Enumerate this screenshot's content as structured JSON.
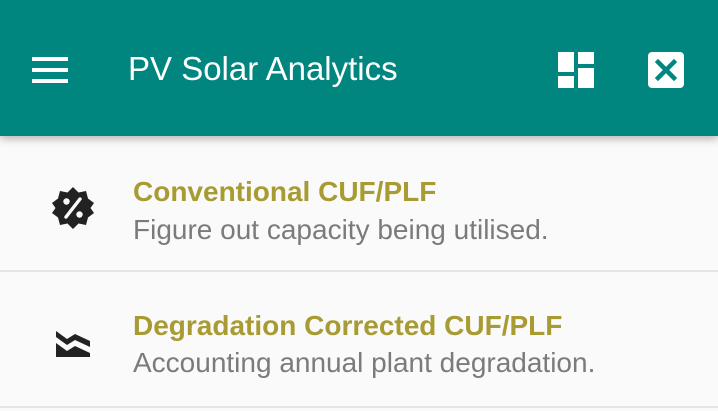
{
  "app_bar": {
    "title": "PV Solar Analytics",
    "icons": {
      "menu": "menu-icon",
      "dashboard": "dashboard-icon",
      "close": "close-box-icon"
    },
    "color": "#00857f"
  },
  "list": {
    "items": [
      {
        "icon": "percent-badge-icon",
        "title": "Conventional CUF/PLF",
        "subtitle": "Figure out capacity being utilised."
      },
      {
        "icon": "degradation-chart-icon",
        "title": "Degradation Corrected CUF/PLF",
        "subtitle": "Accounting annual plant degradation."
      }
    ],
    "title_color": "#a89b33",
    "subtitle_color": "#7b7b7b"
  }
}
